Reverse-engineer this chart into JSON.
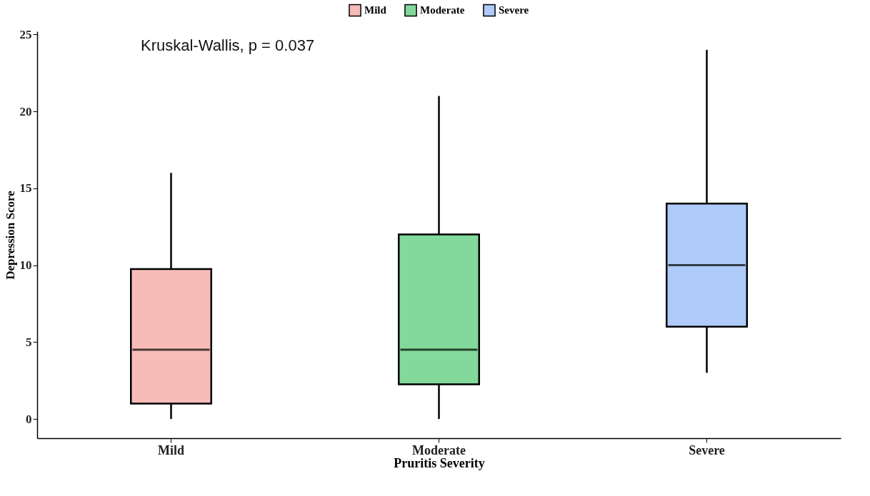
{
  "chart_data": {
    "type": "box",
    "xlabel": "Pruritis Severity",
    "ylabel": "Depression Score",
    "annotations": [
      "Kruskal-Wallis, p = 0.037"
    ],
    "categories": [
      "Mild",
      "Moderate",
      "Severe"
    ],
    "series": [
      {
        "name": "Mild",
        "color": "#f8bcb8",
        "boxes": [
          {
            "low": 0,
            "q1": 1,
            "median": 4.5,
            "q3": 9.75,
            "high": 16
          },
          null,
          null
        ]
      },
      {
        "name": "Moderate",
        "color": "#82d99b",
        "boxes": [
          null,
          {
            "low": 0,
            "q1": 2.25,
            "median": 4.5,
            "q3": 12,
            "high": 21
          },
          null
        ]
      },
      {
        "name": "Severe",
        "color": "#aecbf9",
        "boxes": [
          null,
          null,
          {
            "low": 3,
            "q1": 6,
            "median": 10,
            "q3": 14,
            "high": 24
          }
        ]
      }
    ],
    "ylim": [
      -1.25,
      25.2
    ],
    "yticks": [
      0,
      5,
      10,
      15,
      20,
      25
    ],
    "grid": false,
    "legend": "top"
  }
}
